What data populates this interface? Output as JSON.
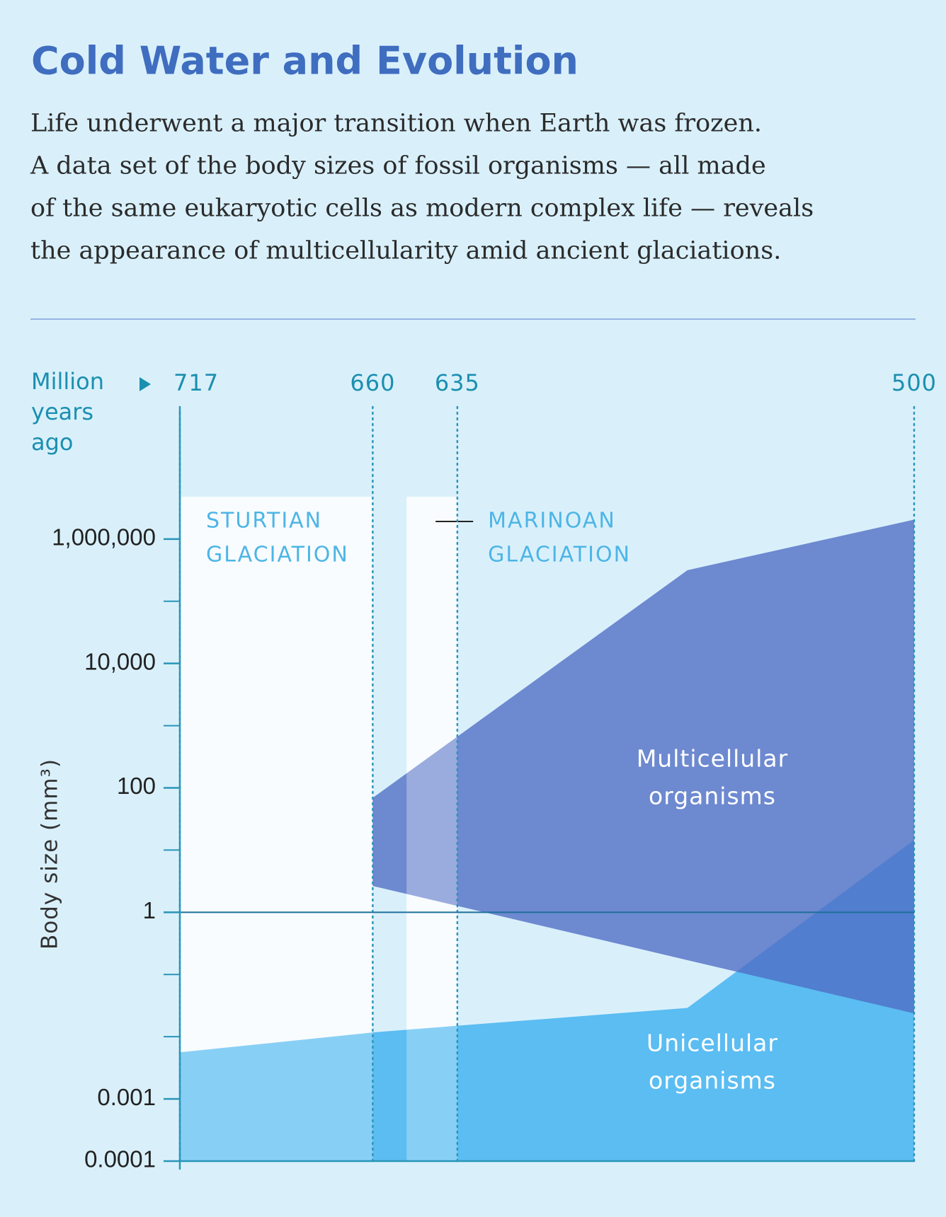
{
  "chart_data": {
    "type": "area",
    "title": "Cold Water and Evolution",
    "subtitle": [
      "Life underwent a major transition when Earth was frozen.",
      "A data set of the body sizes of fossil organisms — all made",
      "of the same eukaryotic cells as modern complex life — reveals",
      "the appearance of multicellularity amid ancient glaciations."
    ],
    "x_label": [
      "Million",
      "years",
      "ago"
    ],
    "y_label": "Body size (mm³)",
    "xlim": [
      717,
      500
    ],
    "xticks": [
      717,
      660,
      635,
      500
    ],
    "ylim": [
      0.0001,
      100000000
    ],
    "log_y": true,
    "yticks": [
      0.0001,
      0.001,
      1,
      100,
      {
        "value": 10000,
        "label": "10,000"
      },
      {
        "value": 1000000,
        "label": "1,000,000"
      }
    ],
    "minor_yticks": [
      0.01,
      0.1,
      10,
      1000,
      100000
    ],
    "hline": 1,
    "glaciations": [
      {
        "label": [
          "STURTIAN",
          "GLACIATION"
        ],
        "start": 717,
        "end": 660
      },
      {
        "label": [
          "MARINOAN",
          "GLACIATION"
        ],
        "start": 650,
        "end": 635
      }
    ],
    "series": [
      {
        "name": [
          "Unicellular",
          "organisms"
        ],
        "color": "#5bbdf2",
        "x": [
          717,
          660,
          635,
          567,
          500
        ],
        "values": [
          0.0056,
          0.0117,
          0.015,
          0.029,
          14.5
        ]
      },
      {
        "name": [
          "Multicellular",
          "organisms"
        ],
        "color": "#4e6cc4",
        "x": [
          660,
          567,
          500
        ],
        "high": [
          69,
          316000,
          2050000
        ],
        "low": [
          2.65,
          0.17,
          0.0237
        ]
      }
    ]
  }
}
